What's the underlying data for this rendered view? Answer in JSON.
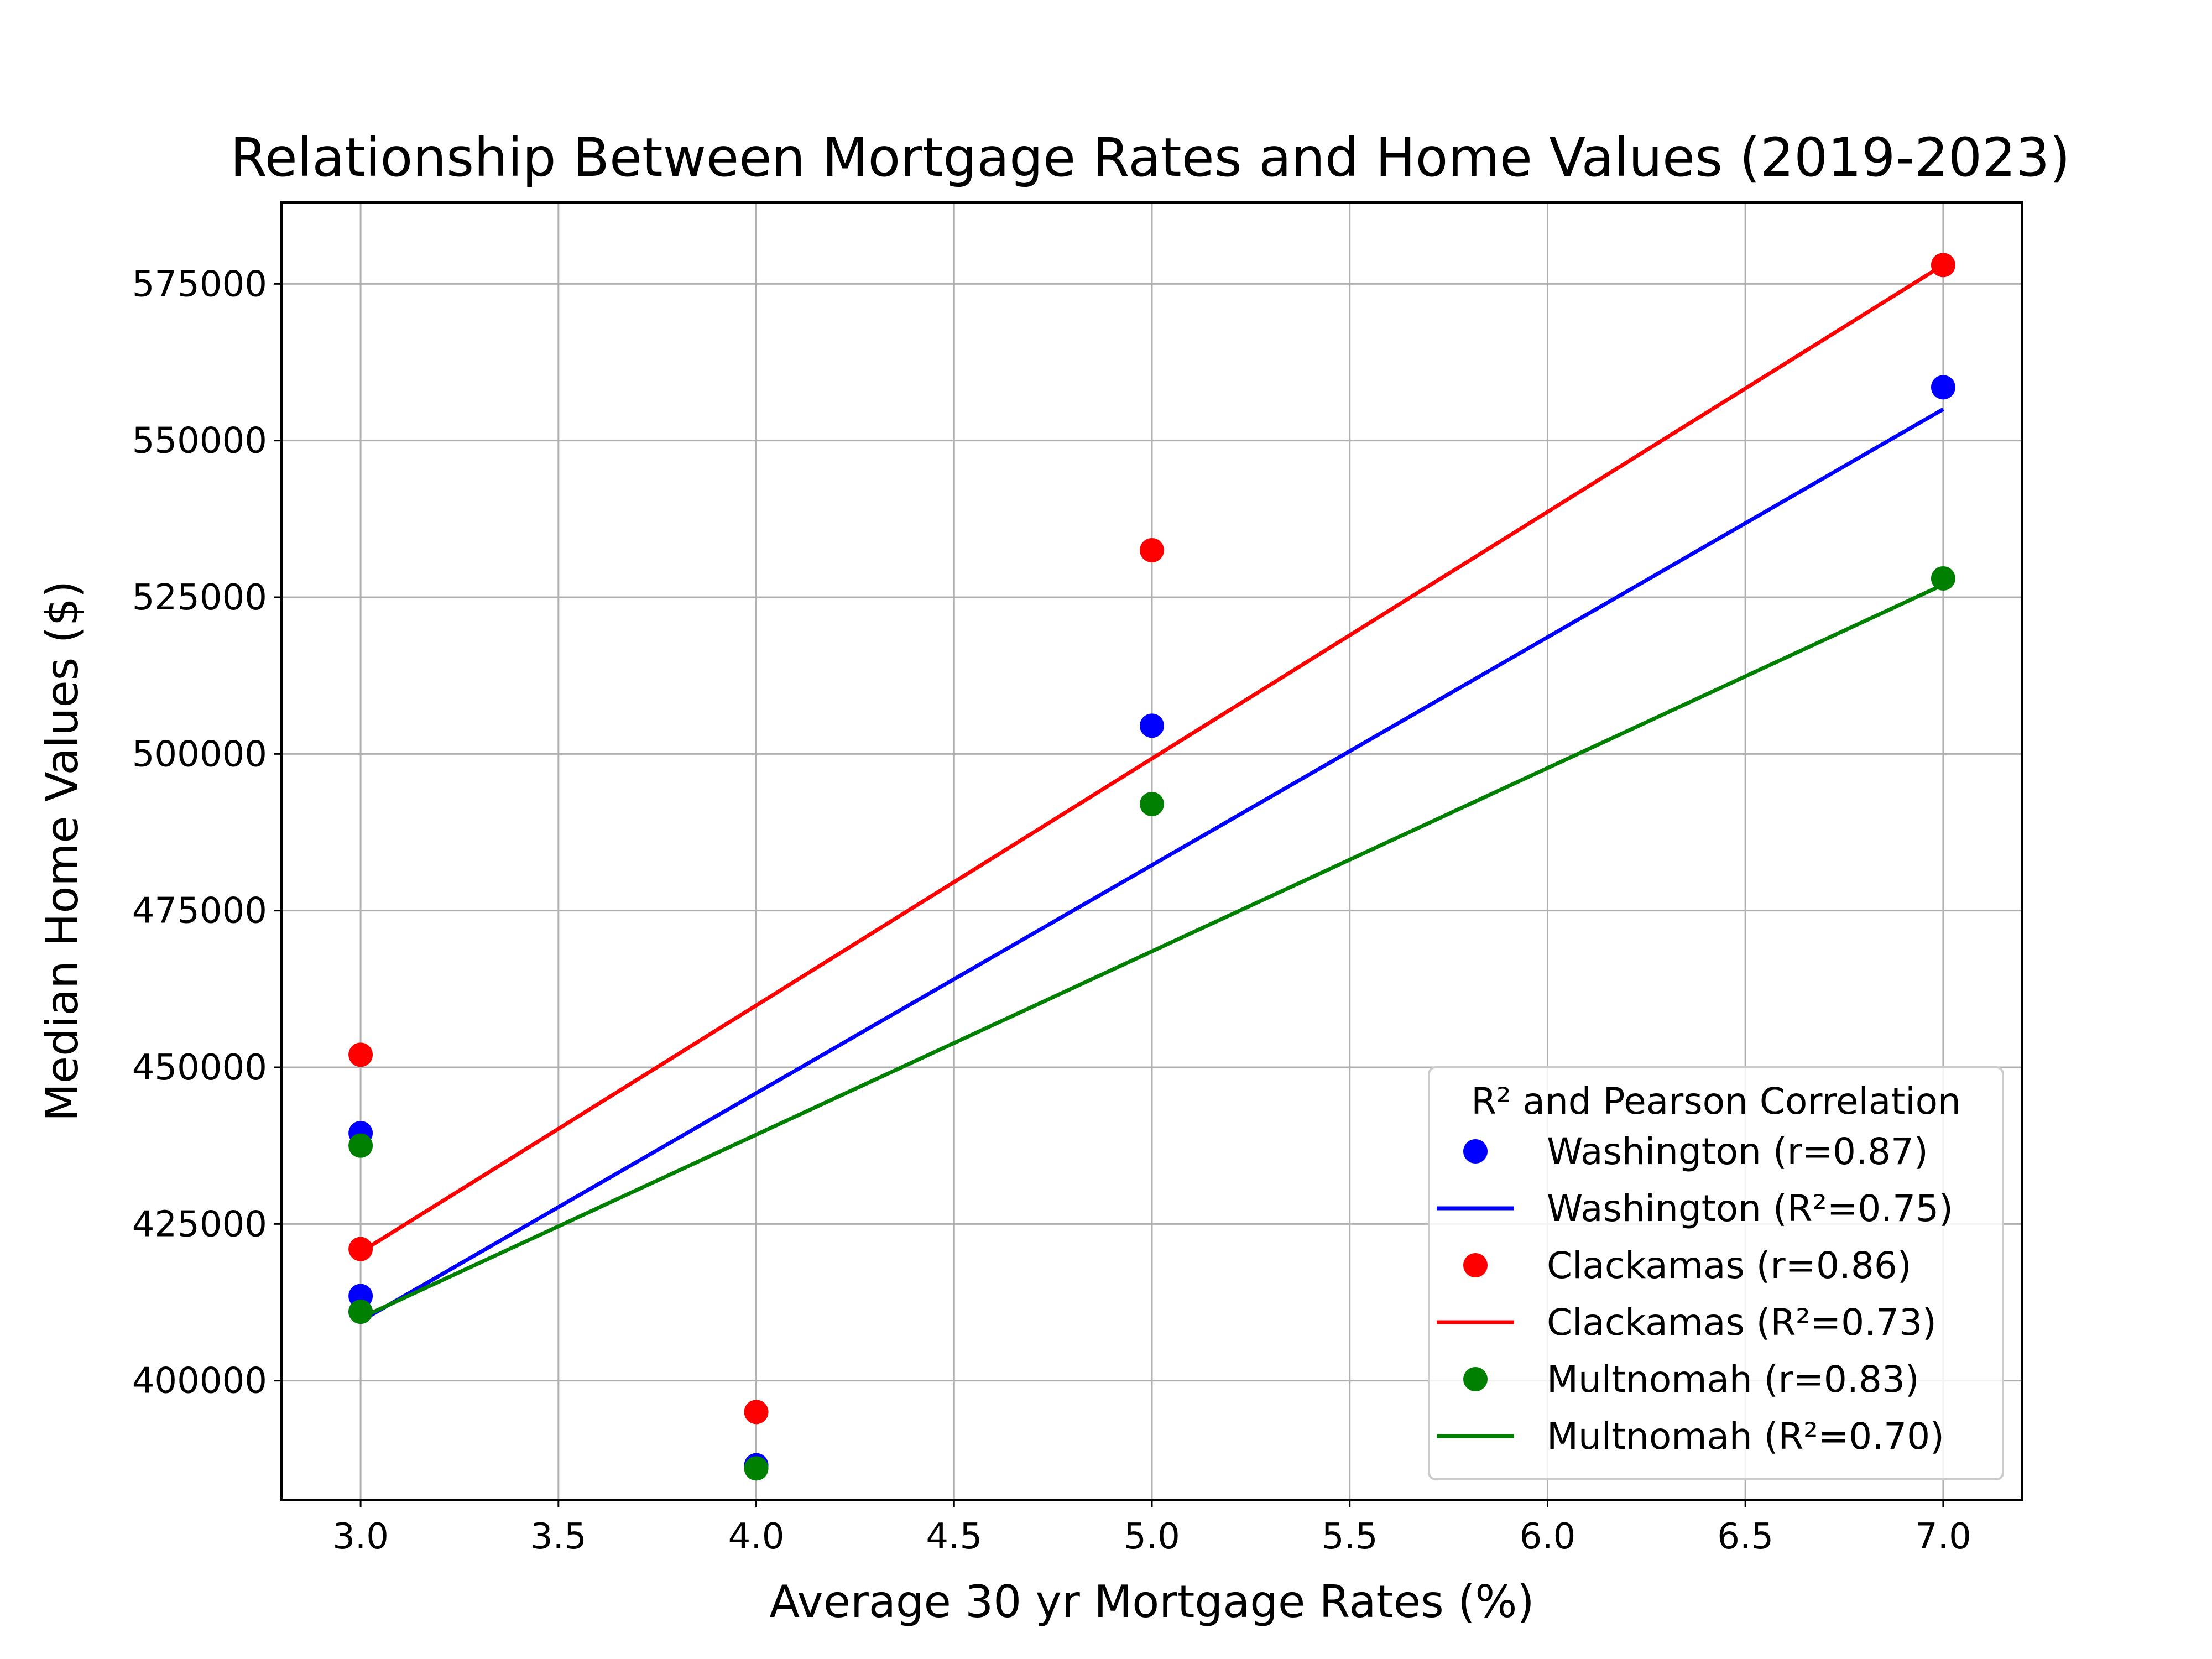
{
  "chart_data": {
    "type": "scatter",
    "title": "Relationship Between Mortgage Rates and Home Values (2019-2023)",
    "xlabel": "Average 30 yr Mortgage Rates (%)",
    "ylabel": "Median Home Values ($)",
    "xlim": [
      2.8,
      7.2
    ],
    "ylim": [
      381000,
      588000
    ],
    "x_ticks": [
      "3.0",
      "3.5",
      "4.0",
      "4.5",
      "5.0",
      "5.5",
      "6.0",
      "6.5",
      "7.0"
    ],
    "x_tick_values": [
      3.0,
      3.5,
      4.0,
      4.5,
      5.0,
      5.5,
      6.0,
      6.5,
      7.0
    ],
    "y_ticks": [
      "400000",
      "425000",
      "450000",
      "475000",
      "500000",
      "525000",
      "550000",
      "575000"
    ],
    "y_tick_values": [
      400000,
      425000,
      450000,
      475000,
      500000,
      525000,
      550000,
      575000
    ],
    "grid": true,
    "legend": {
      "title": "R² and Pearson Correlation",
      "placement": "lower right",
      "entries": [
        {
          "label": "Washington (r=0.87)",
          "kind": "marker",
          "color": "#0000ff"
        },
        {
          "label": "Washington (R²=0.75)",
          "kind": "line",
          "color": "#0000ff"
        },
        {
          "label": "Clackamas (r=0.86)",
          "kind": "marker",
          "color": "#ff0000"
        },
        {
          "label": "Clackamas (R²=0.73)",
          "kind": "line",
          "color": "#ff0000"
        },
        {
          "label": "Multnomah (r=0.83)",
          "kind": "marker",
          "color": "#008000"
        },
        {
          "label": "Multnomah (R²=0.70)",
          "kind": "line",
          "color": "#008000"
        }
      ]
    },
    "series": [
      {
        "name": "Washington",
        "color": "#0000ff",
        "points": [
          {
            "x": 3.0,
            "y": 411000
          },
          {
            "x": 3.0,
            "y": 413500
          },
          {
            "x": 3.0,
            "y": 439500
          },
          {
            "x": 4.0,
            "y": 386500
          },
          {
            "x": 5.0,
            "y": 504500
          },
          {
            "x": 7.0,
            "y": 558500
          }
        ],
        "fit": [
          {
            "x": 3.0,
            "y": 409500
          },
          {
            "x": 7.0,
            "y": 555000
          }
        ]
      },
      {
        "name": "Clackamas",
        "color": "#ff0000",
        "points": [
          {
            "x": 3.0,
            "y": 421000
          },
          {
            "x": 3.0,
            "y": 452000
          },
          {
            "x": 4.0,
            "y": 395000
          },
          {
            "x": 5.0,
            "y": 532500
          },
          {
            "x": 7.0,
            "y": 578000
          }
        ],
        "fit": [
          {
            "x": 3.0,
            "y": 420500
          },
          {
            "x": 7.0,
            "y": 578000
          }
        ]
      },
      {
        "name": "Multnomah",
        "color": "#008000",
        "points": [
          {
            "x": 3.0,
            "y": 411000
          },
          {
            "x": 3.0,
            "y": 437500
          },
          {
            "x": 4.0,
            "y": 386000
          },
          {
            "x": 5.0,
            "y": 492000
          },
          {
            "x": 7.0,
            "y": 528000
          }
        ],
        "fit": [
          {
            "x": 3.0,
            "y": 410000
          },
          {
            "x": 7.0,
            "y": 527000
          }
        ]
      }
    ]
  }
}
